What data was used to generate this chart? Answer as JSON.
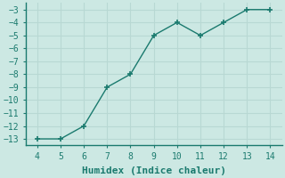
{
  "x": [
    4,
    5,
    6,
    7,
    8,
    9,
    10,
    11,
    12,
    13,
    14
  ],
  "y": [
    -13,
    -13,
    -12,
    -9,
    -8,
    -5,
    -4,
    -5,
    -4,
    -3,
    -3
  ],
  "line_color": "#1a7a6e",
  "marker_color": "#1a7a6e",
  "bg_color": "#cce8e3",
  "grid_color": "#b8d8d3",
  "spine_color": "#1a7a6e",
  "xlabel": "Humidex (Indice chaleur)",
  "xlim": [
    3.5,
    14.5
  ],
  "ylim": [
    -13.5,
    -2.5
  ],
  "xticks": [
    4,
    5,
    6,
    7,
    8,
    9,
    10,
    11,
    12,
    13,
    14
  ],
  "yticks": [
    -13,
    -12,
    -11,
    -10,
    -9,
    -8,
    -7,
    -6,
    -5,
    -4,
    -3
  ],
  "tick_fontsize": 7,
  "xlabel_fontsize": 8,
  "linewidth": 1.0,
  "markersize": 4,
  "markeredgewidth": 1.2
}
